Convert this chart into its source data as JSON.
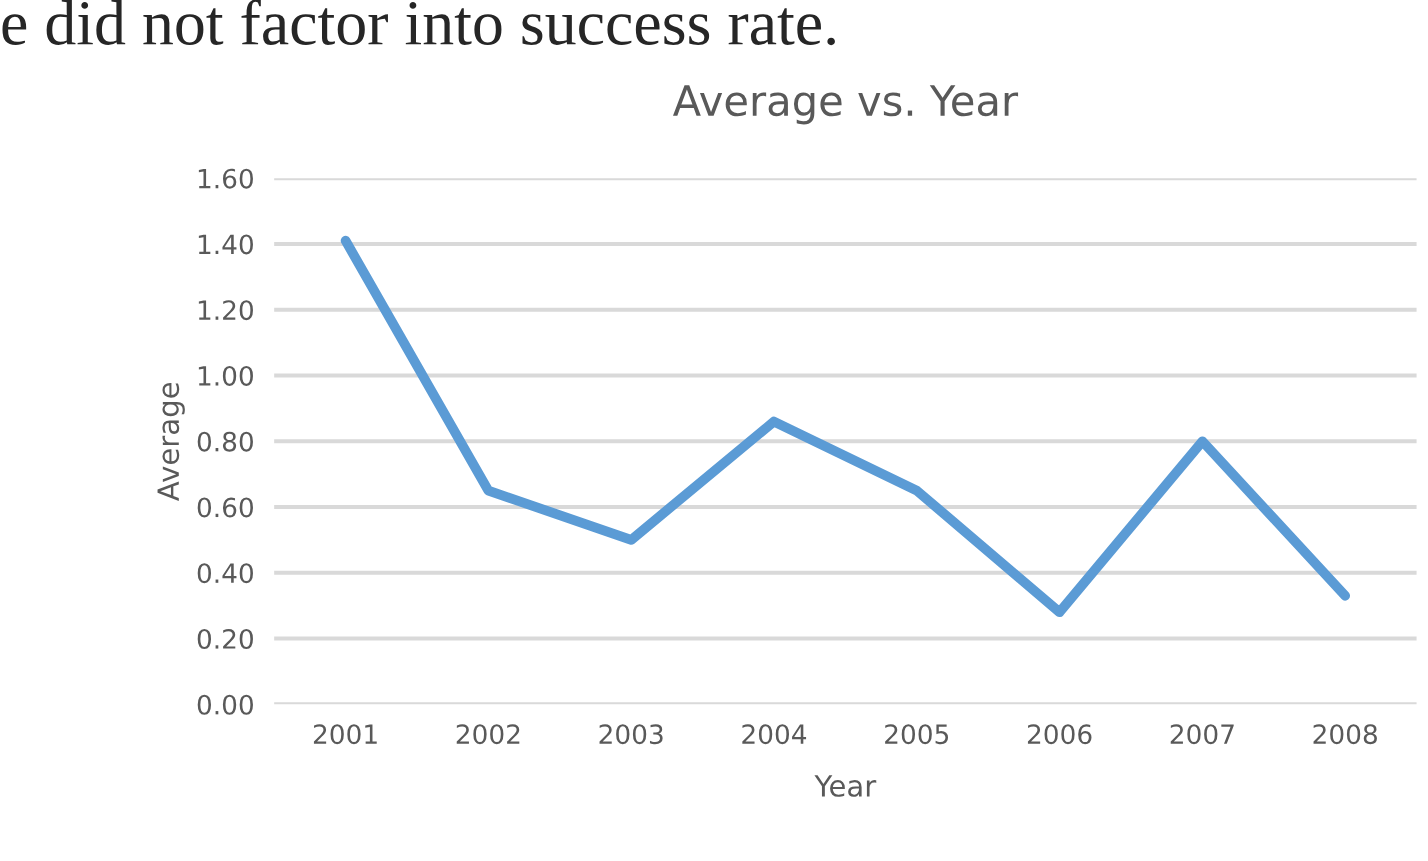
{
  "chart_data": {
    "type": "line",
    "title": "Average vs. Year",
    "xlabel": "Year",
    "ylabel": "Average",
    "annotations": [
      "e did not factor into success rate."
    ],
    "categories": [
      "2001",
      "2002",
      "2003",
      "2004",
      "2005",
      "2006",
      "2007",
      "2008"
    ],
    "series": [
      {
        "color": "#5b9bd5",
        "values": [
          1.41,
          0.65,
          0.5,
          0.86,
          0.65,
          0.28,
          0.8,
          0.33
        ]
      }
    ],
    "ylim": [
      0,
      1.6
    ],
    "yticks": [
      {
        "value": 0,
        "label": "0.00"
      },
      {
        "value": 0.2,
        "label": "0.20"
      },
      {
        "value": 0.4,
        "label": "0.40"
      },
      {
        "value": 0.6,
        "label": "0.60"
      },
      {
        "value": 0.8,
        "label": "0.80"
      },
      {
        "value": 1.0,
        "label": "1.00"
      },
      {
        "value": 1.2,
        "label": "1.20"
      },
      {
        "value": 1.4,
        "label": "1.40"
      },
      {
        "value": 1.6,
        "label": "1.60"
      }
    ],
    "grid": "y",
    "marker": "none",
    "line_style": "solid"
  }
}
